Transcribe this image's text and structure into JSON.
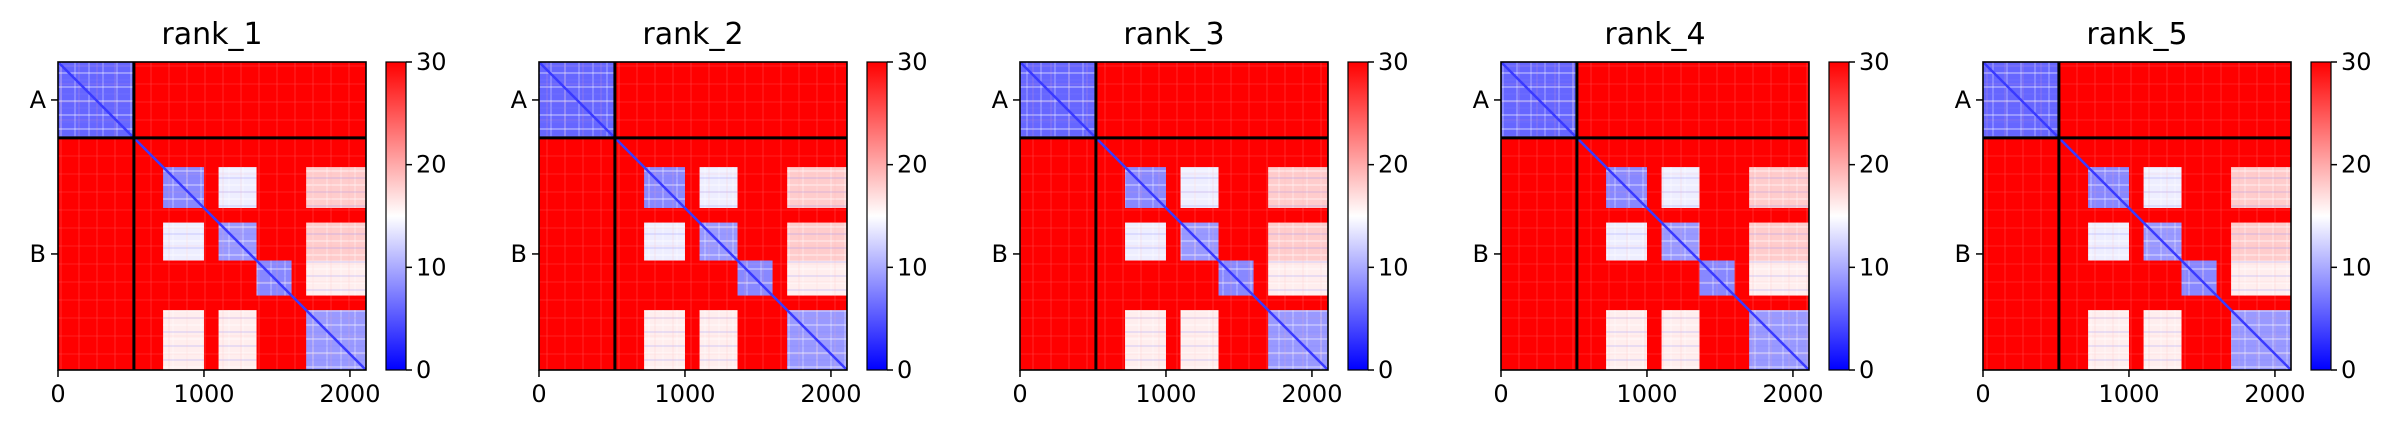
{
  "chart_data": {
    "type": "heatmap",
    "panels": [
      {
        "title": "rank_1"
      },
      {
        "title": "rank_2"
      },
      {
        "title": "rank_3"
      },
      {
        "title": "rank_4"
      },
      {
        "title": "rank_5"
      }
    ],
    "x": {
      "range": [
        0,
        2110
      ],
      "ticks": [
        0,
        1000,
        2000
      ],
      "tick_labels": [
        "0",
        "1000",
        "2000"
      ]
    },
    "y": {
      "chains": [
        "A",
        "B"
      ],
      "chain_boundaries": [
        0,
        520,
        2110
      ]
    },
    "colorbar": {
      "range": [
        0,
        30
      ],
      "ticks": [
        0,
        10,
        20,
        30
      ],
      "tick_labels": [
        "0",
        "10",
        "20",
        "30"
      ],
      "colors": {
        "low": "#0000ff",
        "mid": "#ffffff",
        "high": "#ff0000"
      }
    },
    "blocks": [
      {
        "range": [
          0,
          520
        ],
        "value": 6
      },
      {
        "range": [
          720,
          1000
        ],
        "value": 8
      },
      {
        "range": [
          1100,
          1360
        ],
        "value": 9
      },
      {
        "range": [
          1360,
          1600
        ],
        "value": 8
      },
      {
        "range": [
          1700,
          2110
        ],
        "value": 9
      }
    ],
    "offdiagonal_blocks": [
      {
        "rows": [
          720,
          1000
        ],
        "cols": [
          1100,
          1360
        ],
        "value": 14
      },
      {
        "rows": [
          1100,
          1360
        ],
        "cols": [
          720,
          1000
        ],
        "value": 14
      },
      {
        "rows": [
          1700,
          2110
        ],
        "cols": [
          720,
          1000
        ],
        "value": 16
      },
      {
        "rows": [
          1700,
          2110
        ],
        "cols": [
          1100,
          1360
        ],
        "value": 16
      },
      {
        "rows": [
          720,
          1000
        ],
        "cols": [
          1700,
          2110
        ],
        "value": 18
      },
      {
        "rows": [
          1100,
          1360
        ],
        "cols": [
          1700,
          2110
        ],
        "value": 18
      },
      {
        "rows": [
          1360,
          1600
        ],
        "cols": [
          1700,
          2110
        ],
        "value": 16
      }
    ],
    "background_value": 30
  }
}
